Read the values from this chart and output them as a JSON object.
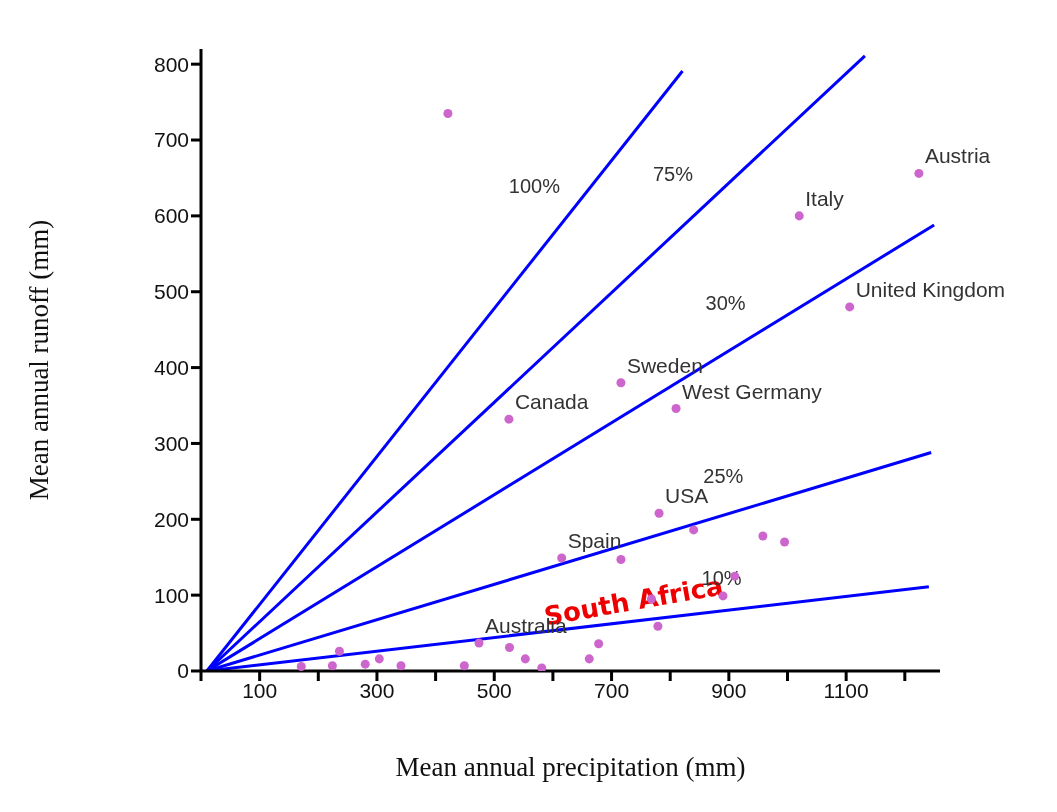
{
  "chart_data": {
    "type": "scatter",
    "xlabel": "Mean annual precipitation (mm)",
    "ylabel": "Mean annual runoff (mm)",
    "xlim": [
      0,
      1260
    ],
    "ylim": [
      0,
      820
    ],
    "xticks": [
      {
        "value": 0,
        "label": null
      },
      100,
      {
        "value": 200,
        "label": null
      },
      300,
      {
        "value": 400,
        "label": null
      },
      500,
      {
        "value": 600,
        "label": null
      },
      700,
      {
        "value": 800,
        "label": null
      },
      900,
      {
        "value": 1000,
        "label": null
      },
      1100,
      {
        "value": 1200,
        "label": null
      }
    ],
    "yticks": [
      0,
      100,
      200,
      300,
      400,
      500,
      600,
      700,
      800
    ],
    "marker": "circle",
    "line_style": "solid",
    "series": [
      {
        "name": "100%",
        "type": "line",
        "marker": "none",
        "color": "#0000ff",
        "x": [
          10,
          821
        ],
        "values": [
          0,
          791
        ]
      },
      {
        "name": "75%",
        "type": "line",
        "marker": "none",
        "color": "#0000ff",
        "x": [
          10,
          1132
        ],
        "values": [
          0,
          811
        ]
      },
      {
        "name": "30%",
        "type": "line",
        "marker": "none",
        "color": "#0000ff",
        "x": [
          10,
          1250
        ],
        "values": [
          0,
          588
        ]
      },
      {
        "name": "25%",
        "type": "line",
        "marker": "none",
        "color": "#0000ff",
        "x": [
          10,
          1245
        ],
        "values": [
          0,
          288
        ]
      },
      {
        "name": "10%",
        "type": "line",
        "marker": "none",
        "color": "#0000ff",
        "x": [
          10,
          1241
        ],
        "values": [
          0,
          111
        ]
      },
      {
        "color": "#cc66cc",
        "x": [
          421,
          525,
          716,
          810,
          1020,
          1224,
          1106,
          781,
          615,
          716,
          840,
          958,
          995,
          910,
          890,
          779,
          678,
          662,
          474,
          526,
          553,
          581,
          449,
          341,
          304,
          280,
          236,
          224,
          171,
          768
        ],
        "values": [
          735,
          332,
          380,
          346,
          600,
          656,
          480,
          208,
          149,
          147,
          186,
          178,
          170,
          125,
          99,
          59,
          36,
          16,
          37,
          31,
          16,
          4,
          7,
          7,
          16,
          9,
          26,
          7,
          6,
          95
        ]
      }
    ],
    "annotations": [
      {
        "text": "Canada",
        "x": 525,
        "y": 332
      },
      {
        "text": "Sweden",
        "x": 716,
        "y": 380
      },
      {
        "text": "West Germany",
        "x": 810,
        "y": 346
      },
      {
        "text": "Italy",
        "x": 1020,
        "y": 600
      },
      {
        "text": "Austria",
        "x": 1224,
        "y": 656
      },
      {
        "text": "United Kingdom",
        "x": 1106,
        "y": 480
      },
      {
        "text": "USA",
        "x": 781,
        "y": 208
      },
      {
        "text": "Spain",
        "x": 615,
        "y": 149
      },
      {
        "text": "Australia",
        "x": 474,
        "y": 37
      },
      "South Africa"
    ]
  }
}
